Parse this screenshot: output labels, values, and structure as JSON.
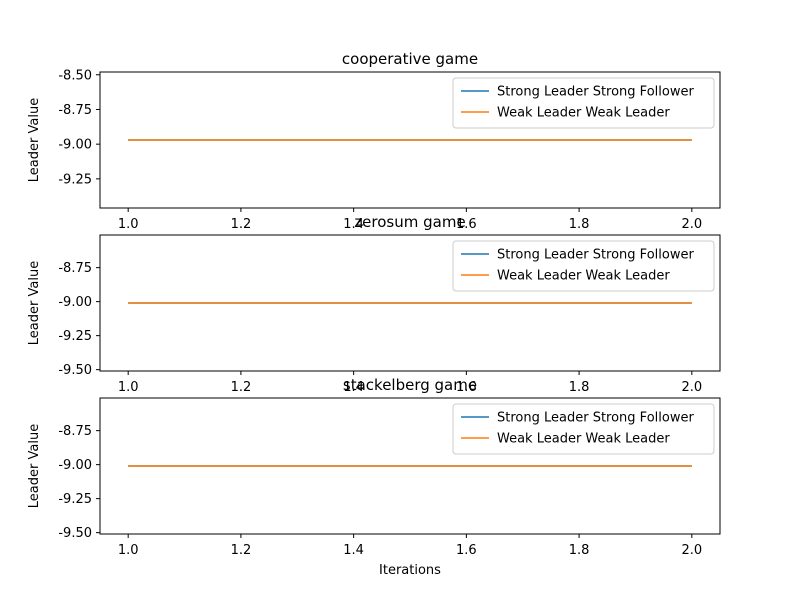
{
  "colors": {
    "series_1": "#1f77b4",
    "series_2": "#ff7f0e",
    "axes": "#000000",
    "background": "#ffffff"
  },
  "xlabel": "Iterations",
  "chart_data": [
    {
      "type": "line",
      "title": "cooperative game",
      "xlabel": "",
      "ylabel": "Leader Value",
      "xlim": [
        0.95,
        2.05
      ],
      "ylim": [
        -9.46,
        -8.48
      ],
      "xticks": [
        "1.0",
        "1.2",
        "1.4",
        "1.6",
        "1.8",
        "2.0"
      ],
      "yticks": [
        "-8.50",
        "-8.75",
        "-9.00",
        "-9.25"
      ],
      "grid": false,
      "legend_position": "top-right",
      "series": [
        {
          "name": "Strong Leader Strong Follower",
          "x": [
            1.0,
            2.0
          ],
          "y": [
            -8.97,
            -8.97
          ]
        },
        {
          "name": "Weak Leader Weak Leader",
          "x": [
            1.0,
            2.0
          ],
          "y": [
            -8.97,
            -8.97
          ]
        }
      ]
    },
    {
      "type": "line",
      "title": "zerosum game",
      "xlabel": "",
      "ylabel": "Leader Value",
      "xlim": [
        0.95,
        2.05
      ],
      "ylim": [
        -9.51,
        -8.51
      ],
      "xticks": [
        "1.0",
        "1.2",
        "1.4",
        "1.6",
        "1.8",
        "2.0"
      ],
      "yticks": [
        "-8.75",
        "-9.00",
        "-9.25",
        "-9.50"
      ],
      "grid": false,
      "legend_position": "top-right",
      "series": [
        {
          "name": "Strong Leader Strong Follower",
          "x": [
            1.0,
            2.0
          ],
          "y": [
            -9.01,
            -9.01
          ]
        },
        {
          "name": "Weak Leader Weak Leader",
          "x": [
            1.0,
            2.0
          ],
          "y": [
            -9.01,
            -9.01
          ]
        }
      ]
    },
    {
      "type": "line",
      "title": "stackelberg game",
      "xlabel": "Iterations",
      "ylabel": "Leader Value",
      "xlim": [
        0.95,
        2.05
      ],
      "ylim": [
        -9.51,
        -8.51
      ],
      "xticks": [
        "1.0",
        "1.2",
        "1.4",
        "1.6",
        "1.8",
        "2.0"
      ],
      "yticks": [
        "-8.75",
        "-9.00",
        "-9.25",
        "-9.50"
      ],
      "grid": false,
      "legend_position": "top-right",
      "series": [
        {
          "name": "Strong Leader Strong Follower",
          "x": [
            1.0,
            2.0
          ],
          "y": [
            -9.01,
            -9.01
          ]
        },
        {
          "name": "Weak Leader Weak Leader",
          "x": [
            1.0,
            2.0
          ],
          "y": [
            -9.01,
            -9.01
          ]
        }
      ]
    }
  ]
}
